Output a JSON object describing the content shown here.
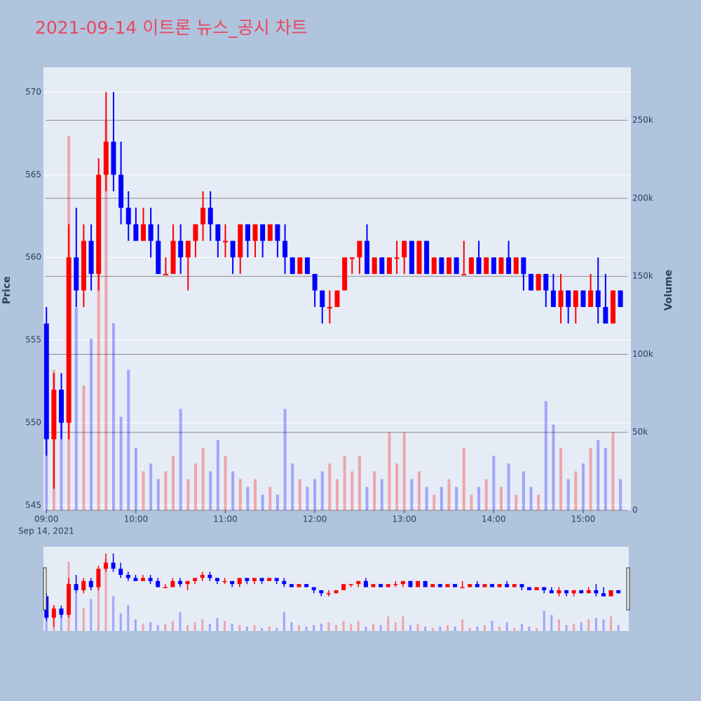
{
  "chart_data": {
    "type": "candlestick",
    "title": "2021-09-14 이트론 뉴스_공시 차트",
    "y_label": "Price",
    "y2_label": "Volume",
    "x_date_label": "Sep 14, 2021",
    "increasing_color": "#ff0000",
    "decreasing_color": "#0000ff",
    "rangeslider": true,
    "x": [
      "2021-09-14 09:00",
      "2021-09-14 09:05",
      "2021-09-14 09:10",
      "2021-09-14 09:15",
      "2021-09-14 09:20",
      "2021-09-14 09:25",
      "2021-09-14 09:30",
      "2021-09-14 09:35",
      "2021-09-14 09:40",
      "2021-09-14 09:45",
      "2021-09-14 09:50",
      "2021-09-14 09:55",
      "2021-09-14 10:00",
      "2021-09-14 10:05",
      "2021-09-14 10:10",
      "2021-09-14 10:15",
      "2021-09-14 10:20",
      "2021-09-14 10:25",
      "2021-09-14 10:30",
      "2021-09-14 10:35",
      "2021-09-14 10:40",
      "2021-09-14 10:45",
      "2021-09-14 10:50",
      "2021-09-14 10:55",
      "2021-09-14 11:00",
      "2021-09-14 11:05",
      "2021-09-14 11:10",
      "2021-09-14 11:15",
      "2021-09-14 11:20",
      "2021-09-14 11:25",
      "2021-09-14 11:30",
      "2021-09-14 11:35",
      "2021-09-14 11:40",
      "2021-09-14 11:45",
      "2021-09-14 11:50",
      "2021-09-14 11:55",
      "2021-09-14 12:00",
      "2021-09-14 12:05",
      "2021-09-14 12:10",
      "2021-09-14 12:15",
      "2021-09-14 12:20",
      "2021-09-14 12:25",
      "2021-09-14 12:30",
      "2021-09-14 12:35",
      "2021-09-14 12:40",
      "2021-09-14 12:45",
      "2021-09-14 12:50",
      "2021-09-14 12:55",
      "2021-09-14 13:00",
      "2021-09-14 13:05",
      "2021-09-14 13:10",
      "2021-09-14 13:15",
      "2021-09-14 13:20",
      "2021-09-14 13:25",
      "2021-09-14 13:30",
      "2021-09-14 13:35",
      "2021-09-14 13:40",
      "2021-09-14 13:45",
      "2021-09-14 13:50",
      "2021-09-14 13:55",
      "2021-09-14 14:00",
      "2021-09-14 14:05",
      "2021-09-14 14:10",
      "2021-09-14 14:15",
      "2021-09-14 14:20",
      "2021-09-14 14:25",
      "2021-09-14 14:30",
      "2021-09-14 14:35",
      "2021-09-14 14:40",
      "2021-09-14 14:45",
      "2021-09-14 14:50",
      "2021-09-14 14:55",
      "2021-09-14 15:00",
      "2021-09-14 15:05",
      "2021-09-14 15:10",
      "2021-09-14 15:15",
      "2021-09-14 15:20",
      "2021-09-14 15:25"
    ],
    "open": [
      556,
      549,
      552,
      550,
      560,
      558,
      561,
      559,
      565,
      567,
      565,
      563,
      562,
      561,
      562,
      561,
      559,
      559,
      561,
      560,
      561,
      562,
      563,
      562,
      561,
      561,
      560,
      562,
      561,
      562,
      561,
      562,
      561,
      560,
      559,
      560,
      559,
      558,
      557,
      557,
      558,
      560,
      560,
      561,
      559,
      560,
      559,
      560,
      560,
      561,
      559,
      561,
      559,
      560,
      559,
      560,
      559,
      559,
      560,
      559,
      560,
      559,
      560,
      559,
      560,
      559,
      558,
      559,
      558,
      557,
      558,
      557,
      558,
      557,
      558,
      557,
      556,
      558
    ],
    "high": [
      557,
      553,
      553,
      562,
      563,
      562,
      562,
      566,
      570,
      570,
      567,
      564,
      563,
      563,
      563,
      562,
      560,
      562,
      562,
      561,
      562,
      564,
      564,
      562,
      562,
      561,
      562,
      562,
      562,
      562,
      562,
      562,
      562,
      560,
      560,
      560,
      559,
      558,
      558,
      558,
      560,
      560,
      561,
      562,
      560,
      560,
      560,
      561,
      561,
      561,
      561,
      561,
      560,
      560,
      560,
      560,
      561,
      560,
      561,
      560,
      560,
      560,
      561,
      560,
      560,
      559,
      559,
      559,
      559,
      559,
      558,
      558,
      558,
      559,
      560,
      559,
      558,
      558
    ],
    "low": [
      548,
      546,
      549,
      549,
      557,
      557,
      558,
      558,
      564,
      564,
      562,
      561,
      561,
      561,
      560,
      559,
      559,
      559,
      559,
      558,
      560,
      561,
      561,
      560,
      560,
      559,
      559,
      560,
      560,
      560,
      561,
      560,
      559,
      559,
      559,
      559,
      557,
      556,
      556,
      557,
      558,
      559,
      559,
      559,
      559,
      559,
      559,
      559,
      559,
      559,
      559,
      559,
      559,
      559,
      559,
      559,
      559,
      559,
      559,
      559,
      559,
      559,
      559,
      559,
      558,
      558,
      558,
      557,
      557,
      556,
      556,
      556,
      557,
      557,
      556,
      556,
      556,
      557
    ],
    "close": [
      549,
      552,
      550,
      560,
      558,
      561,
      559,
      565,
      567,
      565,
      563,
      562,
      561,
      562,
      561,
      559,
      559,
      561,
      560,
      561,
      562,
      563,
      562,
      561,
      561,
      560,
      562,
      561,
      562,
      561,
      562,
      561,
      560,
      559,
      560,
      559,
      558,
      557,
      557,
      558,
      560,
      560,
      561,
      559,
      560,
      559,
      560,
      560,
      561,
      559,
      561,
      559,
      560,
      559,
      560,
      559,
      559,
      560,
      559,
      560,
      559,
      560,
      559,
      560,
      559,
      558,
      559,
      558,
      557,
      558,
      557,
      558,
      557,
      558,
      557,
      556,
      558,
      557
    ],
    "volume": [
      60000,
      90000,
      70000,
      240000,
      130000,
      80000,
      110000,
      160000,
      250000,
      120000,
      60000,
      90000,
      40000,
      25000,
      30000,
      20000,
      25000,
      35000,
      65000,
      20000,
      30000,
      40000,
      25000,
      45000,
      35000,
      25000,
      20000,
      15000,
      20000,
      10000,
      15000,
      10000,
      65000,
      30000,
      20000,
      15000,
      20000,
      25000,
      30000,
      20000,
      35000,
      25000,
      35000,
      15000,
      25000,
      20000,
      50000,
      30000,
      50000,
      20000,
      25000,
      15000,
      10000,
      15000,
      20000,
      15000,
      40000,
      10000,
      15000,
      20000,
      35000,
      15000,
      30000,
      10000,
      25000,
      15000,
      10000,
      70000,
      55000,
      40000,
      20000,
      25000,
      30000,
      40000,
      45000,
      40000,
      50000,
      20000
    ],
    "xlim": [
      "2021-09-14 08:58",
      "2021-09-14 15:32"
    ],
    "xticks": [
      {
        "value": "2021-09-14 09:00",
        "label": "09:00"
      },
      {
        "value": "2021-09-14 10:00",
        "label": "10:00"
      },
      {
        "value": "2021-09-14 11:00",
        "label": "11:00"
      },
      {
        "value": "2021-09-14 12:00",
        "label": "12:00"
      },
      {
        "value": "2021-09-14 13:00",
        "label": "13:00"
      },
      {
        "value": "2021-09-14 14:00",
        "label": "14:00"
      },
      {
        "value": "2021-09-14 15:00",
        "label": "15:00"
      }
    ],
    "ylim": [
      544.7,
      571.5
    ],
    "yticks": [
      545,
      550,
      555,
      560,
      565,
      570
    ],
    "y2lim": [
      0,
      284000
    ],
    "y2ticks": [
      0,
      {
        "value": 50000,
        "label": "50k"
      },
      {
        "value": 100000,
        "label": "100k"
      },
      {
        "value": 150000,
        "label": "150k"
      },
      {
        "value": 200000,
        "label": "200k"
      },
      {
        "value": 250000,
        "label": "250k"
      }
    ],
    "grid": true
  }
}
